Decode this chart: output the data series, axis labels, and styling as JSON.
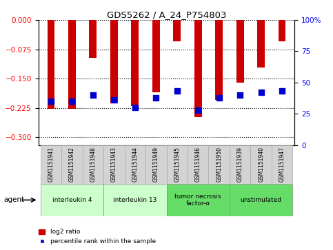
{
  "title": "GDS5262 / A_24_P754803",
  "samples": [
    "GSM1151941",
    "GSM1151942",
    "GSM1151948",
    "GSM1151943",
    "GSM1151944",
    "GSM1151949",
    "GSM1151945",
    "GSM1151946",
    "GSM1151950",
    "GSM1151939",
    "GSM1151940",
    "GSM1151947"
  ],
  "log2_ratio": [
    -0.228,
    -0.228,
    -0.097,
    -0.213,
    -0.22,
    -0.185,
    -0.055,
    -0.248,
    -0.205,
    -0.16,
    -0.122,
    -0.055
  ],
  "percentile_rank": [
    35,
    35,
    40,
    36,
    30,
    38,
    43,
    28,
    38,
    40,
    42,
    43
  ],
  "groups": [
    {
      "label": "interleukin 4",
      "indices": [
        0,
        1,
        2
      ],
      "color": "#ccffcc"
    },
    {
      "label": "interleukin 13",
      "indices": [
        3,
        4,
        5
      ],
      "color": "#ccffcc"
    },
    {
      "label": "tumor necrosis\nfactor-α",
      "indices": [
        6,
        7,
        8
      ],
      "color": "#66dd66"
    },
    {
      "label": "unstimulated",
      "indices": [
        9,
        10,
        11
      ],
      "color": "#66dd66"
    }
  ],
  "bar_color": "#cc0000",
  "dot_color": "#0000cc",
  "ylim_left": [
    -0.32,
    0.0
  ],
  "yticks_left": [
    0.0,
    -0.075,
    -0.15,
    -0.225,
    -0.3
  ],
  "yticks_right": [
    0,
    25,
    50,
    75,
    100
  ],
  "bar_width": 0.35,
  "dot_size": 35,
  "legend_items": [
    "log2 ratio",
    "percentile rank within the sample"
  ],
  "agent_label": "agent"
}
